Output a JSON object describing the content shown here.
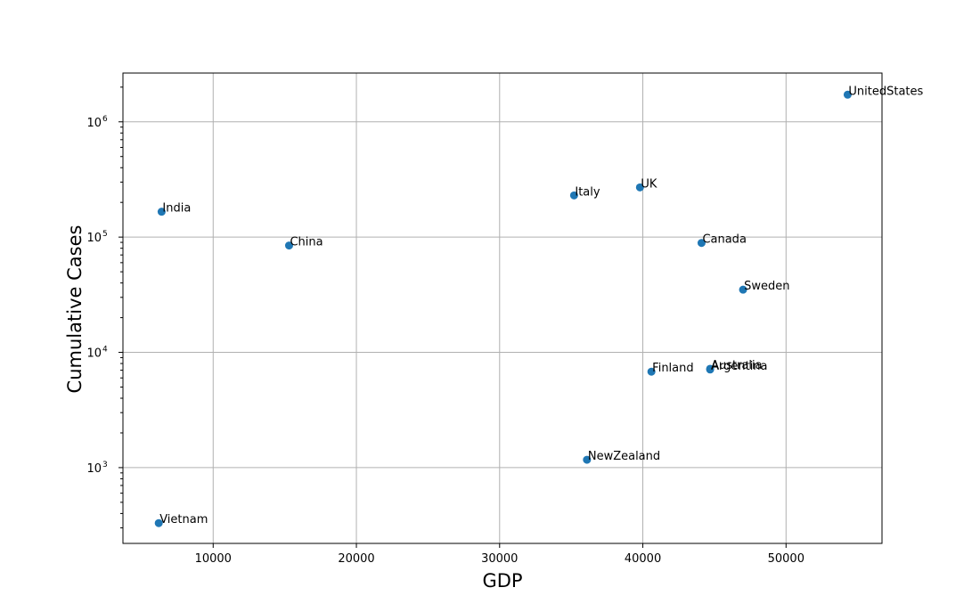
{
  "chart_data": {
    "type": "scatter",
    "xlabel": "GDP",
    "ylabel": "Cumulative Cases",
    "xlim": [
      3700,
      56700
    ],
    "ylim": [
      220,
      2650000
    ],
    "yscale": "log",
    "grid": true,
    "point_color": "#1f77b4",
    "x_ticks": [
      {
        "value": 10000,
        "label": "10000"
      },
      {
        "value": 20000,
        "label": "20000"
      },
      {
        "value": 30000,
        "label": "30000"
      },
      {
        "value": 40000,
        "label": "40000"
      },
      {
        "value": 50000,
        "label": "50000"
      }
    ],
    "y_ticks": [
      {
        "value": 1000,
        "base": "10",
        "exp": "3"
      },
      {
        "value": 10000,
        "base": "10",
        "exp": "4"
      },
      {
        "value": 100000,
        "base": "10",
        "exp": "5"
      },
      {
        "value": 1000000,
        "base": "10",
        "exp": "6"
      }
    ],
    "points": [
      {
        "label": "UnitedStates",
        "x": 54300,
        "y": 1720000
      },
      {
        "label": "UK",
        "x": 39800,
        "y": 270000
      },
      {
        "label": "Italy",
        "x": 35200,
        "y": 230000
      },
      {
        "label": "India",
        "x": 6400,
        "y": 166000
      },
      {
        "label": "Canada",
        "x": 44100,
        "y": 89000
      },
      {
        "label": "China",
        "x": 15300,
        "y": 84500
      },
      {
        "label": "Sweden",
        "x": 47000,
        "y": 35000
      },
      {
        "label": "Argentina",
        "x": 44700,
        "y": 7100
      },
      {
        "label": "Australia",
        "x": 44700,
        "y": 7200
      },
      {
        "label": "Finland",
        "x": 40600,
        "y": 6800
      },
      {
        "label": "NewZealand",
        "x": 36100,
        "y": 1170
      },
      {
        "label": "Vietnam",
        "x": 6200,
        "y": 330
      }
    ]
  }
}
